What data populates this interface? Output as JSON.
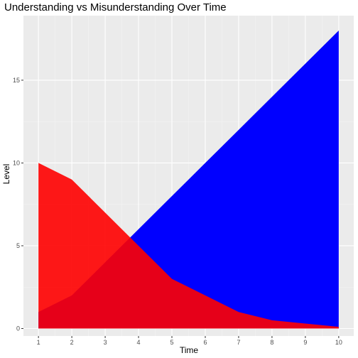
{
  "chart_data": {
    "type": "area",
    "title": "Understanding vs Misunderstanding Over Time",
    "xlabel": "Time",
    "ylabel": "Level",
    "x": [
      1,
      2,
      3,
      4,
      5,
      6,
      7,
      8,
      9,
      10
    ],
    "series": [
      {
        "values": [
          1,
          2,
          4,
          6,
          8,
          10,
          12,
          14,
          16,
          18
        ],
        "color": "#0000ff",
        "opacity": 1
      },
      {
        "values": [
          10,
          9,
          7,
          5,
          3,
          2,
          1,
          0.5,
          0.3,
          0.1
        ],
        "color": "#ff0000",
        "opacity": 0.9
      }
    ],
    "xlim": [
      0.55,
      10.45
    ],
    "ylim": [
      -0.45,
      18.9
    ],
    "x_ticks": [
      1,
      2,
      3,
      4,
      5,
      6,
      7,
      8,
      9,
      10
    ],
    "y_ticks": [
      0,
      5,
      10,
      15
    ],
    "grid": true,
    "legend": "none",
    "colors": {
      "panel": "#ebebeb",
      "grid_major": "#ffffff",
      "grid_minor": "#f4f4f4"
    }
  }
}
